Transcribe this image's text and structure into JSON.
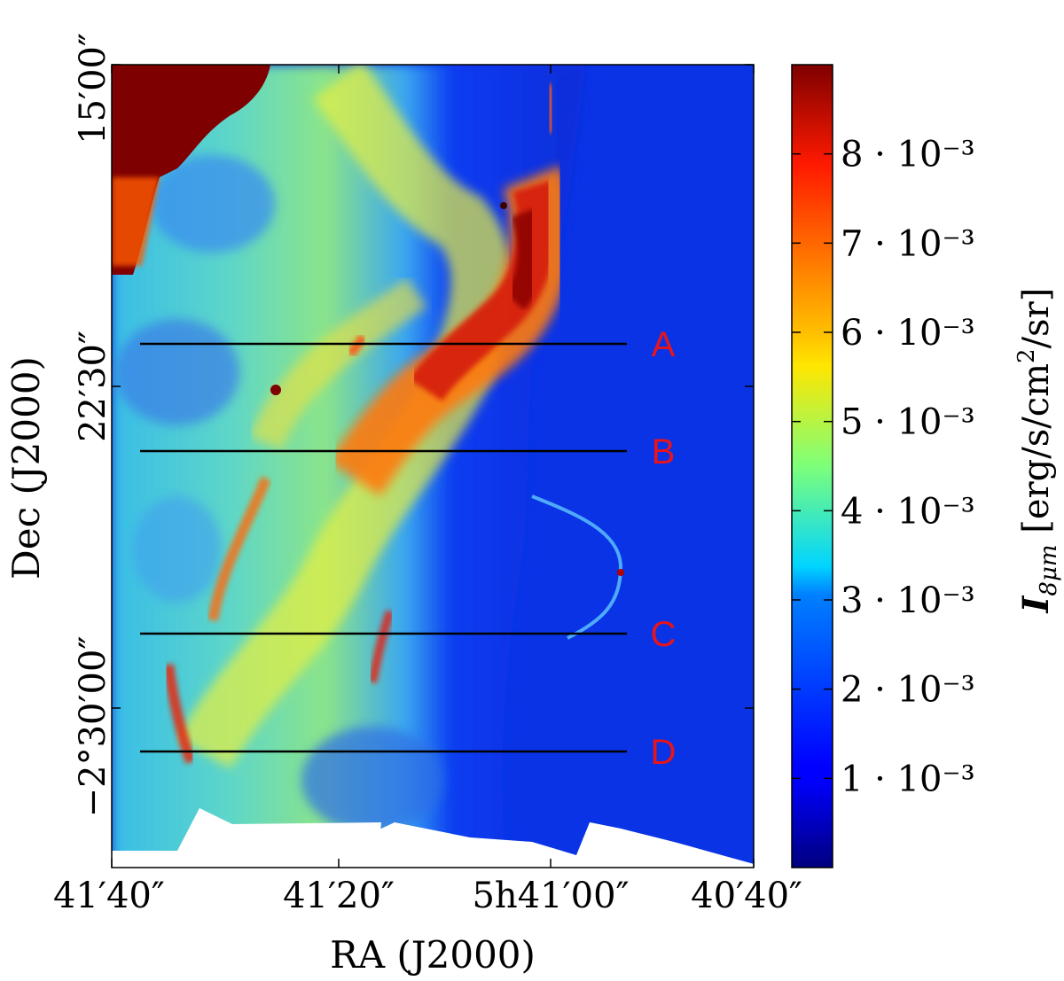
{
  "figure": {
    "xlabel": "RA (J2000)",
    "ylabel": "Dec (J2000)",
    "x_ticks": [
      "41′40″",
      "41′20″",
      "5h41′00″",
      "40′40″"
    ],
    "y_ticks": [
      "15′00″",
      "22′30″",
      "−2°30′00″"
    ],
    "colorbar": {
      "label": "I_{8μm} [erg/s/cm²/sr]",
      "label_main": "I",
      "label_sub": "8μm",
      "label_units": " [erg/s/cm",
      "label_units_sup": "2",
      "label_units_tail": "/sr]",
      "colormap": "jet",
      "ticks": [
        "1 · 10⁻³",
        "2 · 10⁻³",
        "3 · 10⁻³",
        "4 · 10⁻³",
        "5 · 10⁻³",
        "6 · 10⁻³",
        "7 · 10⁻³",
        "8 · 10⁻³"
      ],
      "tick_values": [
        0.001,
        0.002,
        0.003,
        0.004,
        0.005,
        0.006,
        0.007,
        0.008
      ],
      "range": [
        0,
        0.009
      ]
    },
    "cuts": [
      {
        "label": "A",
        "color": "#e8141b"
      },
      {
        "label": "B",
        "color": "#e8141b"
      },
      {
        "label": "C",
        "color": "#e8141b"
      },
      {
        "label": "D",
        "color": "#e8141b"
      }
    ]
  }
}
